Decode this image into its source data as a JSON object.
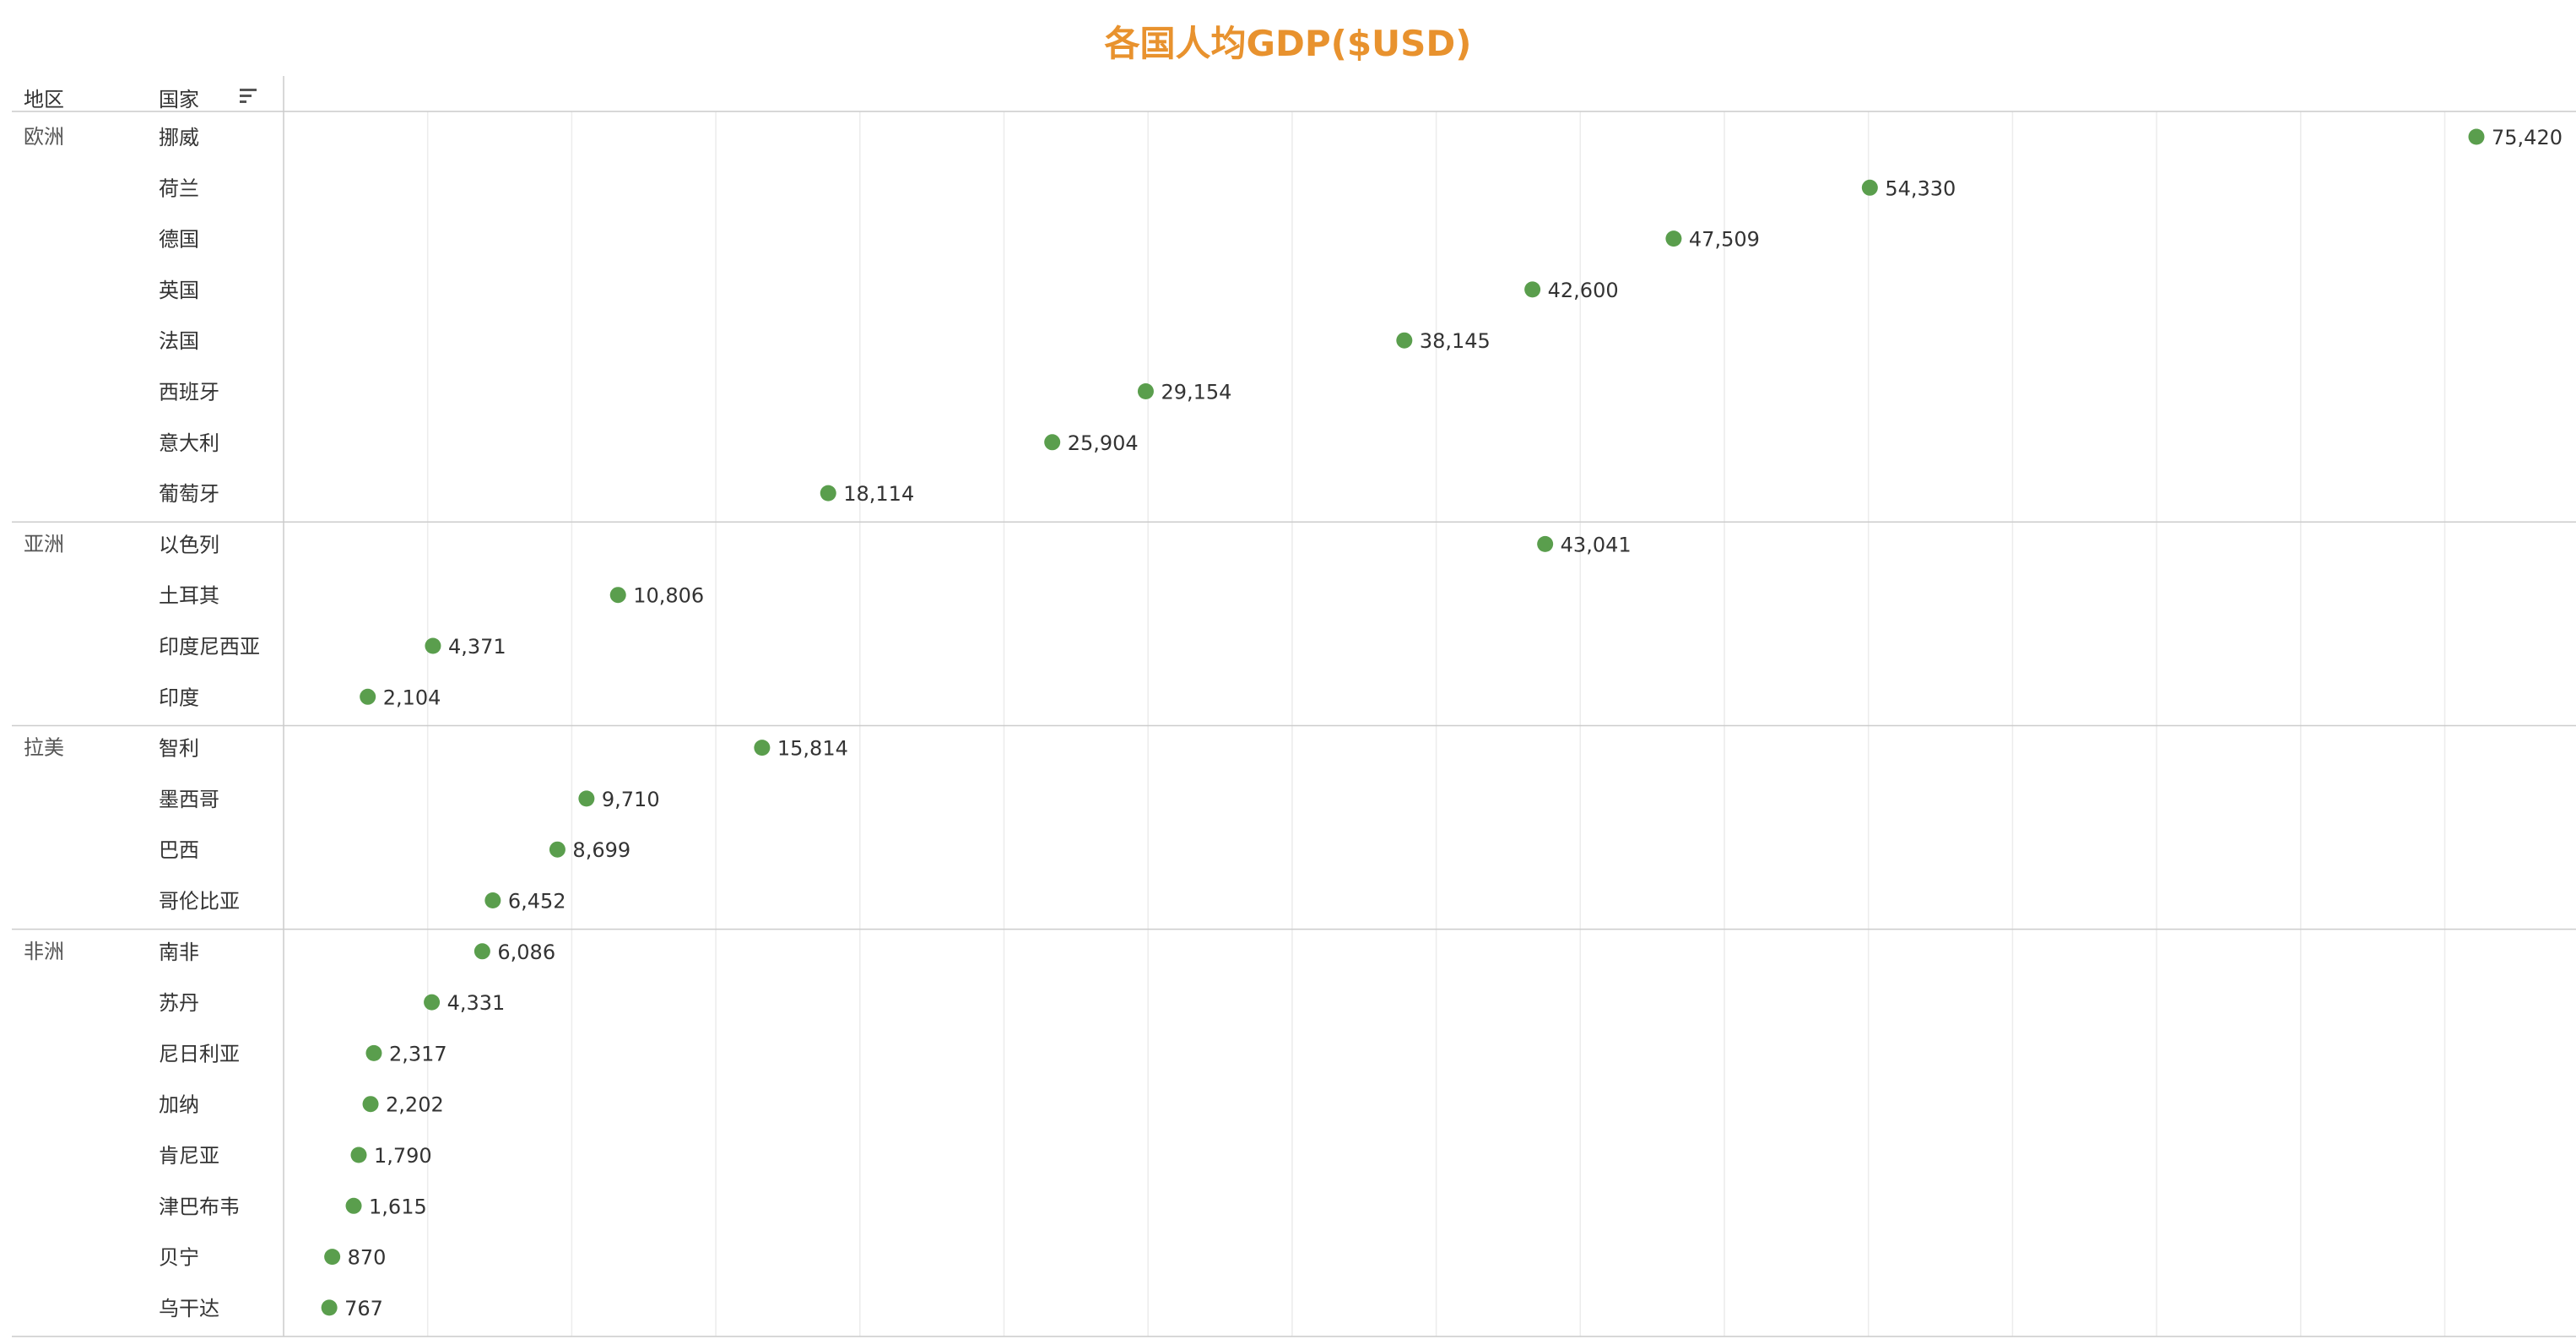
{
  "title": "各国人均GDP($USD)",
  "headers": {
    "region": "地区",
    "country": "国家"
  },
  "colors": {
    "title": "#E8922E",
    "point": "#5A9E4D",
    "grid": "#ECECEC",
    "divider": "#CCCCCC"
  },
  "icons": {
    "sort": "sort-descending-icon"
  },
  "chart_data": {
    "type": "scatter",
    "title": "各国人均GDP($USD)",
    "xlim": [
      0,
      75420
    ],
    "grid": true,
    "groups": [
      {
        "region": "欧洲",
        "items": [
          {
            "country": "挪威",
            "value": 75420,
            "label": "75,420"
          },
          {
            "country": "荷兰",
            "value": 54330,
            "label": "54,330"
          },
          {
            "country": "德国",
            "value": 47509,
            "label": "47,509"
          },
          {
            "country": "英国",
            "value": 42600,
            "label": "42,600"
          },
          {
            "country": "法国",
            "value": 38145,
            "label": "38,145"
          },
          {
            "country": "西班牙",
            "value": 29154,
            "label": "29,154"
          },
          {
            "country": "意大利",
            "value": 25904,
            "label": "25,904"
          },
          {
            "country": "葡萄牙",
            "value": 18114,
            "label": "18,114"
          }
        ]
      },
      {
        "region": "亚洲",
        "items": [
          {
            "country": "以色列",
            "value": 43041,
            "label": "43,041"
          },
          {
            "country": "土耳其",
            "value": 10806,
            "label": "10,806"
          },
          {
            "country": "印度尼西亚",
            "value": 4371,
            "label": "4,371"
          },
          {
            "country": "印度",
            "value": 2104,
            "label": "2,104"
          }
        ]
      },
      {
        "region": "拉美",
        "items": [
          {
            "country": "智利",
            "value": 15814,
            "label": "15,814"
          },
          {
            "country": "墨西哥",
            "value": 9710,
            "label": "9,710"
          },
          {
            "country": "巴西",
            "value": 8699,
            "label": "8,699"
          },
          {
            "country": "哥伦比亚",
            "value": 6452,
            "label": "6,452"
          }
        ]
      },
      {
        "region": "非洲",
        "items": [
          {
            "country": "南非",
            "value": 6086,
            "label": "6,086"
          },
          {
            "country": "苏丹",
            "value": 4331,
            "label": "4,331"
          },
          {
            "country": "尼日利亚",
            "value": 2317,
            "label": "2,317"
          },
          {
            "country": "加纳",
            "value": 2202,
            "label": "2,202"
          },
          {
            "country": "肯尼亚",
            "value": 1790,
            "label": "1,790"
          },
          {
            "country": "津巴布韦",
            "value": 1615,
            "label": "1,615"
          },
          {
            "country": "贝宁",
            "value": 870,
            "label": "870"
          },
          {
            "country": "乌干达",
            "value": 767,
            "label": "767"
          }
        ]
      }
    ]
  }
}
